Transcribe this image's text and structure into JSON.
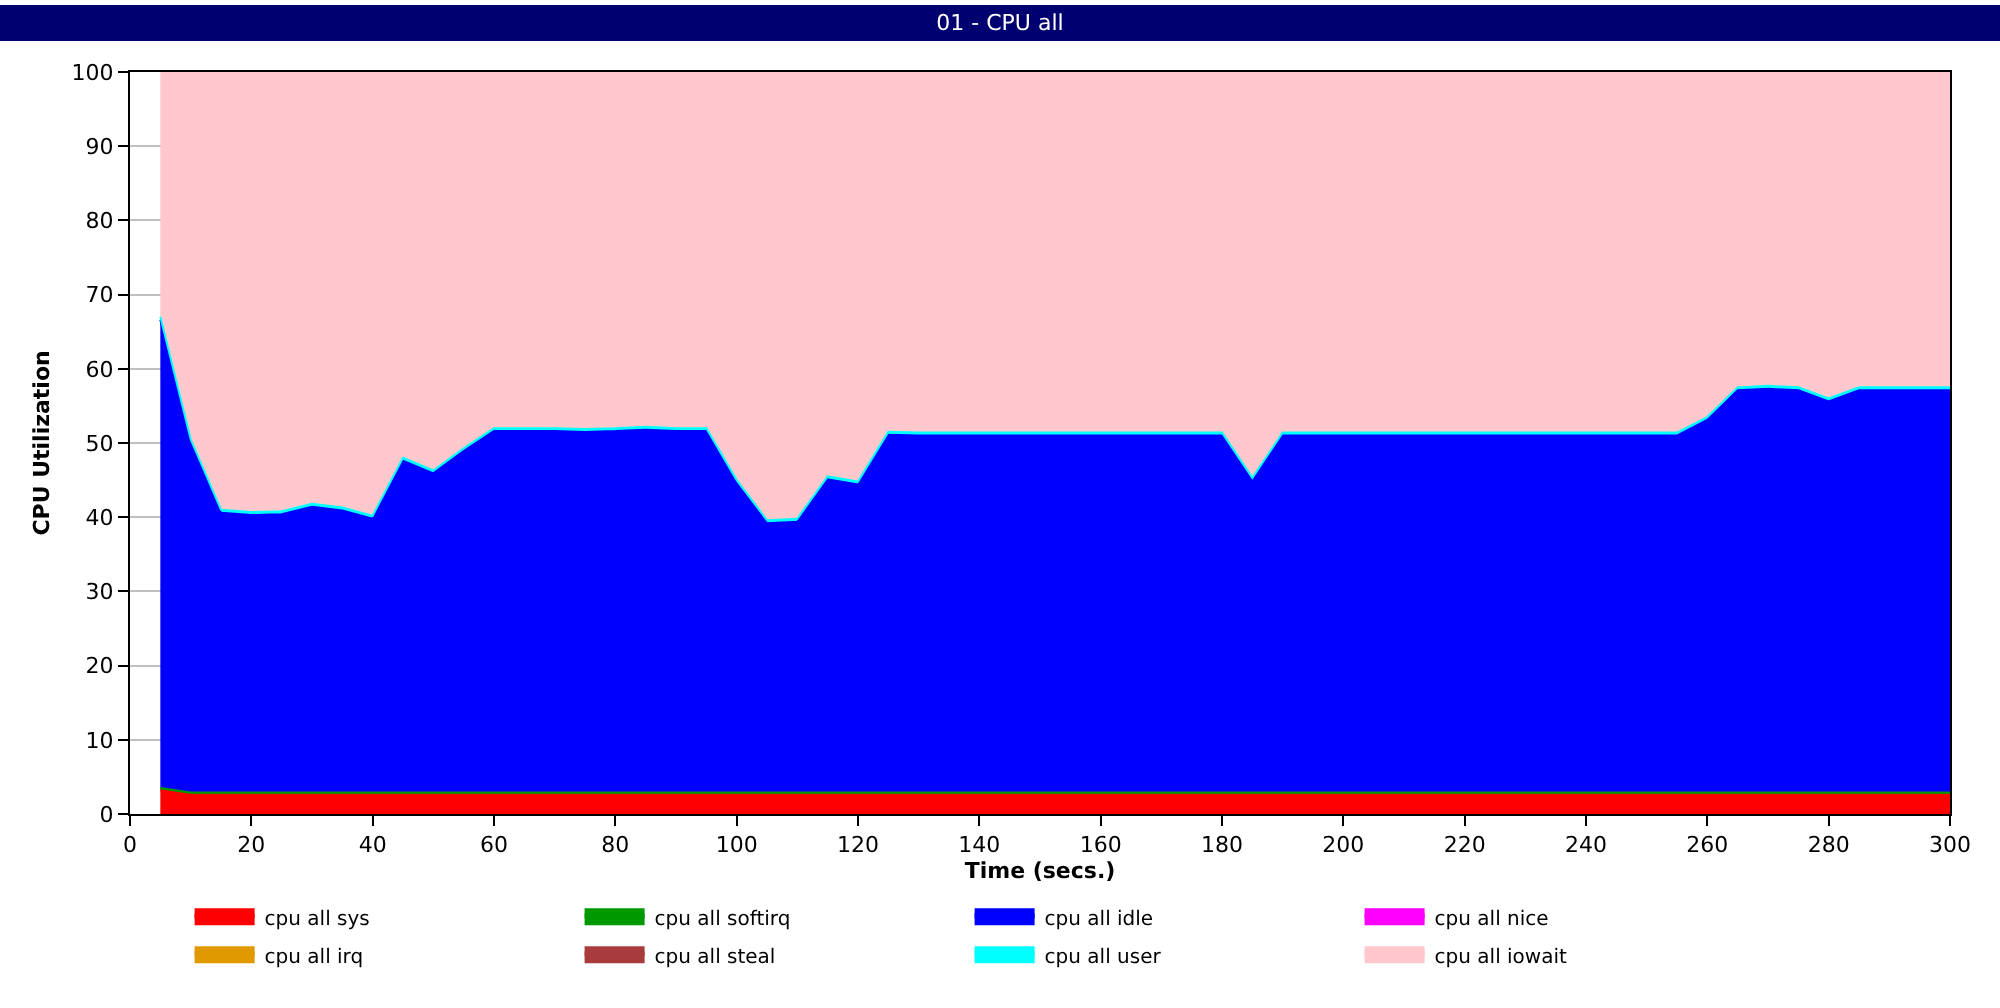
{
  "chart_data": {
    "type": "area",
    "stacked": true,
    "title": "01 - CPU all",
    "xlabel": "Time (secs.)",
    "ylabel": "CPU Utilization",
    "x": [
      5,
      10,
      15,
      20,
      25,
      30,
      35,
      40,
      45,
      50,
      55,
      60,
      65,
      70,
      75,
      80,
      85,
      90,
      95,
      100,
      105,
      110,
      115,
      120,
      125,
      130,
      135,
      140,
      145,
      150,
      155,
      160,
      165,
      170,
      175,
      180,
      185,
      190,
      195,
      200,
      205,
      210,
      215,
      220,
      225,
      230,
      235,
      240,
      245,
      250,
      255,
      260,
      265,
      270,
      275,
      280,
      285,
      290,
      295,
      300
    ],
    "xlim": [
      0,
      300
    ],
    "xticks": [
      0,
      20,
      40,
      60,
      80,
      100,
      120,
      140,
      160,
      180,
      200,
      220,
      240,
      260,
      280,
      300
    ],
    "ylim": [
      0,
      100
    ],
    "yticks": [
      0,
      10,
      20,
      30,
      40,
      50,
      60,
      70,
      80,
      90,
      100
    ],
    "grid": "y",
    "legend": "bottom",
    "marker": "none",
    "line_style": "solid",
    "series": [
      {
        "name": "cpu all sys",
        "color": "#ff0000",
        "values": [
          3.2,
          2.6,
          2.6,
          2.6,
          2.6,
          2.6,
          2.6,
          2.6,
          2.6,
          2.6,
          2.6,
          2.6,
          2.6,
          2.6,
          2.6,
          2.6,
          2.6,
          2.6,
          2.6,
          2.6,
          2.6,
          2.6,
          2.6,
          2.6,
          2.6,
          2.6,
          2.6,
          2.6,
          2.6,
          2.6,
          2.6,
          2.6,
          2.6,
          2.6,
          2.6,
          2.6,
          2.6,
          2.6,
          2.6,
          2.6,
          2.6,
          2.6,
          2.6,
          2.6,
          2.6,
          2.6,
          2.6,
          2.6,
          2.6,
          2.6,
          2.6,
          2.6,
          2.6,
          2.6,
          2.6,
          2.6,
          2.6,
          2.6,
          2.6,
          2.6
        ]
      },
      {
        "name": "cpu all softirq",
        "color": "#009900",
        "values": [
          0.3,
          0.3,
          0.3,
          0.3,
          0.3,
          0.3,
          0.3,
          0.3,
          0.3,
          0.3,
          0.3,
          0.3,
          0.3,
          0.3,
          0.3,
          0.3,
          0.3,
          0.3,
          0.3,
          0.3,
          0.3,
          0.3,
          0.3,
          0.3,
          0.3,
          0.3,
          0.3,
          0.3,
          0.3,
          0.3,
          0.3,
          0.3,
          0.3,
          0.3,
          0.3,
          0.3,
          0.3,
          0.3,
          0.3,
          0.3,
          0.3,
          0.3,
          0.3,
          0.3,
          0.3,
          0.3,
          0.3,
          0.3,
          0.3,
          0.3,
          0.3,
          0.3,
          0.3,
          0.3,
          0.3,
          0.3,
          0.3,
          0.3,
          0.3,
          0.3
        ]
      },
      {
        "name": "cpu all idle",
        "color": "#0000ff",
        "values": [
          63.1,
          47.2,
          37.7,
          37.4,
          37.5,
          38.5,
          38.0,
          36.9,
          44.7,
          43.0,
          46.0,
          48.7,
          48.7,
          48.7,
          48.6,
          48.7,
          48.9,
          48.7,
          48.7,
          41.7,
          36.3,
          36.5,
          42.2,
          41.5,
          48.2,
          48.1,
          48.1,
          48.1,
          48.1,
          48.1,
          48.1,
          48.1,
          48.1,
          48.1,
          48.1,
          48.1,
          42.0,
          48.1,
          48.1,
          48.1,
          48.1,
          48.1,
          48.1,
          48.1,
          48.1,
          48.1,
          48.1,
          48.1,
          48.1,
          48.1,
          48.1,
          50.2,
          54.2,
          54.4,
          54.2,
          52.7,
          54.2,
          54.2,
          54.2,
          54.2
        ]
      },
      {
        "name": "cpu all nice",
        "color": "#ff00ff",
        "values": [
          null,
          null,
          null,
          null,
          null,
          null,
          null,
          null,
          null,
          null,
          null,
          null,
          null,
          null,
          null,
          null,
          null,
          null,
          null,
          null,
          null,
          null,
          null,
          null,
          null,
          null,
          null,
          null,
          null,
          null,
          null,
          null,
          null,
          null,
          null,
          null,
          null,
          null,
          null,
          null,
          null,
          null,
          null,
          null,
          null,
          null,
          null,
          null,
          null,
          null,
          null,
          null,
          null,
          null,
          null,
          null,
          null,
          null,
          null,
          null
        ]
      },
      {
        "name": "cpu all irq",
        "color": "#e09a00",
        "values": [
          null,
          null,
          null,
          null,
          null,
          null,
          null,
          null,
          null,
          null,
          null,
          null,
          null,
          null,
          null,
          null,
          null,
          null,
          null,
          null,
          null,
          null,
          null,
          null,
          null,
          null,
          null,
          null,
          null,
          null,
          null,
          null,
          null,
          null,
          null,
          null,
          null,
          null,
          null,
          null,
          null,
          null,
          null,
          null,
          null,
          null,
          null,
          null,
          null,
          null,
          null,
          null,
          null,
          null,
          null,
          null,
          null,
          null,
          null,
          null
        ]
      },
      {
        "name": "cpu all steal",
        "color": "#a83c3c",
        "values": [
          null,
          null,
          null,
          null,
          null,
          null,
          null,
          null,
          null,
          null,
          null,
          null,
          null,
          null,
          null,
          null,
          null,
          null,
          null,
          null,
          null,
          null,
          null,
          null,
          null,
          null,
          null,
          null,
          null,
          null,
          null,
          null,
          null,
          null,
          null,
          null,
          null,
          null,
          null,
          null,
          null,
          null,
          null,
          null,
          null,
          null,
          null,
          null,
          null,
          null,
          null,
          null,
          null,
          null,
          null,
          null,
          null,
          null,
          null,
          null
        ]
      },
      {
        "name": "cpu all user",
        "color": "#00ffff",
        "values": [
          0.4,
          0.4,
          0.4,
          0.4,
          0.4,
          0.4,
          0.4,
          0.4,
          0.4,
          0.4,
          0.4,
          0.4,
          0.4,
          0.4,
          0.4,
          0.4,
          0.4,
          0.4,
          0.4,
          0.4,
          0.4,
          0.4,
          0.4,
          0.4,
          0.4,
          0.4,
          0.4,
          0.4,
          0.4,
          0.4,
          0.4,
          0.4,
          0.4,
          0.4,
          0.4,
          0.4,
          0.4,
          0.4,
          0.4,
          0.4,
          0.4,
          0.4,
          0.4,
          0.4,
          0.4,
          0.4,
          0.4,
          0.4,
          0.4,
          0.4,
          0.4,
          0.4,
          0.4,
          0.4,
          0.4,
          0.4,
          0.4,
          0.4,
          0.4,
          0.4
        ]
      },
      {
        "name": "cpu all iowait",
        "color": "#ffc8cc",
        "values": [
          33,
          49.5,
          59,
          59.3,
          59.2,
          58.2,
          58.7,
          59.8,
          52,
          53.7,
          50.7,
          48,
          48,
          48,
          48.1,
          48,
          47.8,
          48,
          48,
          55,
          60.4,
          60.2,
          54.5,
          55.2,
          48.5,
          48.6,
          48.6,
          48.6,
          48.6,
          48.6,
          48.6,
          48.6,
          48.6,
          48.6,
          48.6,
          48.6,
          54.7,
          48.6,
          48.6,
          48.6,
          48.6,
          48.6,
          48.6,
          48.6,
          48.6,
          48.6,
          48.6,
          48.6,
          48.6,
          48.6,
          48.6,
          46.5,
          42.5,
          42.3,
          42.5,
          44,
          42.5,
          42.5,
          42.5,
          42.5
        ]
      }
    ]
  }
}
